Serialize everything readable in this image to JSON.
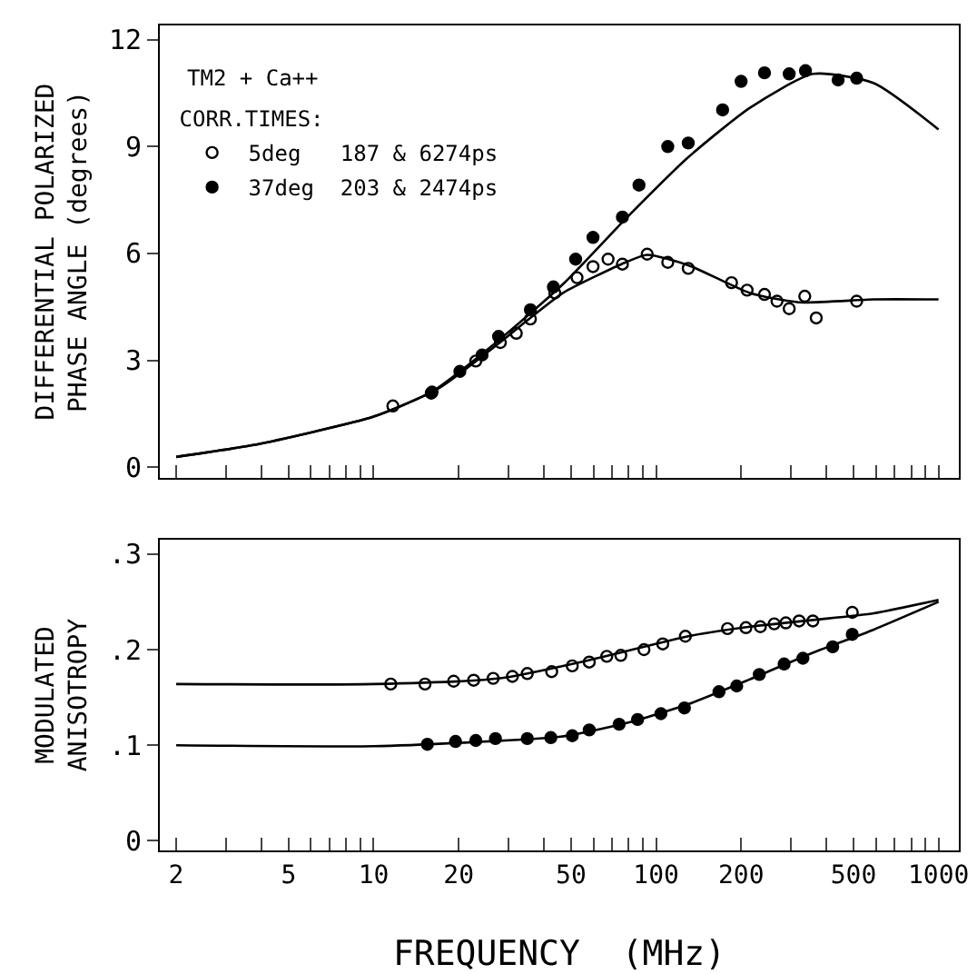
{
  "chart_data": [
    {
      "type": "scatter",
      "ylabel": "DIFFERENTIAL POLARIZED\nPHASE ANGLE (degrees)",
      "annotations": [
        "TM2 + Ca++"
      ],
      "legend_title": "CORR.TIMES:",
      "legend": "top left",
      "log": "x",
      "grid": false,
      "tick_labels": "y",
      "xlim": [
        1.75,
        1180
      ],
      "ylim": [
        -0.3,
        12.4
      ],
      "yticks": [
        0,
        3,
        6,
        9,
        12
      ],
      "xticks": [
        {
          "value": 2,
          "label": null
        },
        {
          "value": 3,
          "label": null
        },
        {
          "value": 4,
          "label": null
        },
        {
          "value": 5,
          "label": null
        },
        {
          "value": 6,
          "label": null
        },
        {
          "value": 7,
          "label": null
        },
        {
          "value": 8,
          "label": null
        },
        {
          "value": 9,
          "label": null
        },
        {
          "value": 10,
          "label": null
        },
        {
          "value": 20,
          "label": null
        },
        {
          "value": 30,
          "label": null
        },
        {
          "value": 40,
          "label": null
        },
        {
          "value": 50,
          "label": null
        },
        {
          "value": 60,
          "label": null
        },
        {
          "value": 70,
          "label": null
        },
        {
          "value": 80,
          "label": null
        },
        {
          "value": 90,
          "label": null
        },
        {
          "value": 100,
          "label": null
        },
        {
          "value": 200,
          "label": null
        },
        {
          "value": 300,
          "label": null
        },
        {
          "value": 400,
          "label": null
        },
        {
          "value": 500,
          "label": null
        },
        {
          "value": 600,
          "label": null
        },
        {
          "value": 700,
          "label": null
        },
        {
          "value": 800,
          "label": null
        },
        {
          "value": 900,
          "label": null
        },
        {
          "value": 1000,
          "label": null
        }
      ],
      "series": [
        {
          "name": "5deg   187 & 6274ps",
          "type": "scatter",
          "marker": "circle-open",
          "color": "#000000",
          "x": [
            11.7,
            16,
            23,
            28.1,
            32,
            35.9,
            43.8,
            52.5,
            59.8,
            67.6,
            76,
            93,
            110,
            130,
            185,
            210,
            242,
            268,
            296,
            336,
            369,
            513
          ],
          "values": [
            1.72,
            2.08,
            2.98,
            3.5,
            3.76,
            4.16,
            4.89,
            5.32,
            5.63,
            5.84,
            5.7,
            5.98,
            5.75,
            5.58,
            5.18,
            4.97,
            4.85,
            4.66,
            4.45,
            4.8,
            4.19,
            4.66
          ]
        },
        {
          "name": "37deg  203 & 2474ps",
          "type": "scatter",
          "marker": "circle",
          "color": "#000000",
          "x": [
            16.1,
            20.2,
            24.2,
            27.7,
            35.9,
            43.3,
            51.9,
            59.8,
            76,
            87,
            110,
            130,
            172,
            200,
            242,
            296,
            338,
            441,
            513
          ],
          "values": [
            2.11,
            2.69,
            3.15,
            3.67,
            4.42,
            5.06,
            5.84,
            6.45,
            7.02,
            7.92,
            9.0,
            9.1,
            10.03,
            10.83,
            11.07,
            11.04,
            11.13,
            10.87,
            10.92
          ]
        },
        {
          "type": "line",
          "marker": "none",
          "color": "#000000",
          "x": [
            2,
            3.67,
            6.1,
            10,
            16.9,
            28,
            36,
            47,
            78,
            93,
            130,
            215,
            320,
            590,
            1000
          ],
          "values": [
            0.29,
            0.61,
            0.99,
            1.42,
            2.2,
            3.5,
            4.2,
            4.9,
            5.75,
            5.96,
            5.67,
            4.89,
            4.63,
            4.71,
            4.71
          ]
        },
        {
          "type": "line",
          "marker": "none",
          "color": "#000000",
          "x": [
            2,
            3.67,
            6.1,
            10,
            16,
            28,
            47,
            78,
            130,
            215,
            360,
            590,
            1000
          ],
          "values": [
            0.29,
            0.61,
            0.99,
            1.42,
            2.11,
            3.59,
            5.15,
            6.97,
            8.7,
            10.09,
            11.04,
            10.78,
            9.48
          ]
        }
      ]
    },
    {
      "type": "scatter",
      "ylabel": "MODULATED\nANISOTROPY",
      "xlabel": "FREQUENCY  (MHz)",
      "log": "x",
      "grid": false,
      "legend": false,
      "xlim": [
        1.75,
        1180
      ],
      "ylim": [
        -0.01,
        0.315
      ],
      "yticks": [
        0,
        {
          "value": 0.1,
          "label": ".1"
        },
        {
          "value": 0.2,
          "label": ".2"
        },
        {
          "value": 0.3,
          "label": ".3"
        }
      ],
      "xticks": [
        2,
        {
          "value": 3,
          "label": null
        },
        {
          "value": 4,
          "label": null
        },
        5,
        {
          "value": 6,
          "label": null
        },
        {
          "value": 7,
          "label": null
        },
        {
          "value": 8,
          "label": null
        },
        {
          "value": 9,
          "label": null
        },
        10,
        20,
        {
          "value": 30,
          "label": null
        },
        {
          "value": 40,
          "label": null
        },
        50,
        {
          "value": 60,
          "label": null
        },
        {
          "value": 70,
          "label": null
        },
        {
          "value": 80,
          "label": null
        },
        {
          "value": 90,
          "label": null
        },
        100,
        200,
        {
          "value": 300,
          "label": null
        },
        {
          "value": 400,
          "label": null
        },
        500,
        {
          "value": 600,
          "label": null
        },
        {
          "value": 700,
          "label": null
        },
        {
          "value": 800,
          "label": null
        },
        {
          "value": 900,
          "label": null
        },
        1000
      ],
      "series": [
        {
          "type": "scatter",
          "marker": "circle-open",
          "color": "#000000",
          "x": [
            11.5,
            15.2,
            19.2,
            22.6,
            26.5,
            31,
            35,
            42.7,
            50.5,
            58,
            66.9,
            75,
            90.6,
            105.6,
            127,
            179,
            208,
            234,
            262,
            288,
            321,
            359,
            495
          ],
          "values": [
            0.164,
            0.164,
            0.167,
            0.168,
            0.17,
            0.172,
            0.175,
            0.177,
            0.183,
            0.187,
            0.193,
            0.194,
            0.2,
            0.206,
            0.214,
            0.222,
            0.223,
            0.224,
            0.227,
            0.228,
            0.23,
            0.23,
            0.239
          ]
        },
        {
          "type": "scatter",
          "marker": "circle",
          "color": "#000000",
          "x": [
            15.5,
            19.5,
            23,
            27,
            35,
            42.4,
            50.5,
            58,
            74,
            86,
            104,
            126,
            167,
            193,
            232,
            284,
            331,
            422,
            495
          ],
          "values": [
            0.101,
            0.104,
            0.105,
            0.107,
            0.107,
            0.108,
            0.11,
            0.116,
            0.122,
            0.127,
            0.133,
            0.139,
            0.156,
            0.162,
            0.174,
            0.185,
            0.191,
            0.203,
            0.216
          ]
        },
        {
          "type": "line",
          "marker": "none",
          "color": "#000000",
          "x": [
            2,
            10,
            28,
            60,
            130,
            215,
            360,
            590,
            1000
          ],
          "values": [
            0.164,
            0.164,
            0.17,
            0.19,
            0.214,
            0.224,
            0.231,
            0.238,
            0.252
          ]
        },
        {
          "type": "line",
          "marker": "none",
          "color": "#000000",
          "x": [
            2,
            10,
            21.7,
            46,
            78,
            130,
            215,
            360,
            590,
            1000
          ],
          "values": [
            0.1,
            0.099,
            0.103,
            0.109,
            0.123,
            0.143,
            0.169,
            0.197,
            0.221,
            0.25
          ]
        }
      ]
    }
  ]
}
